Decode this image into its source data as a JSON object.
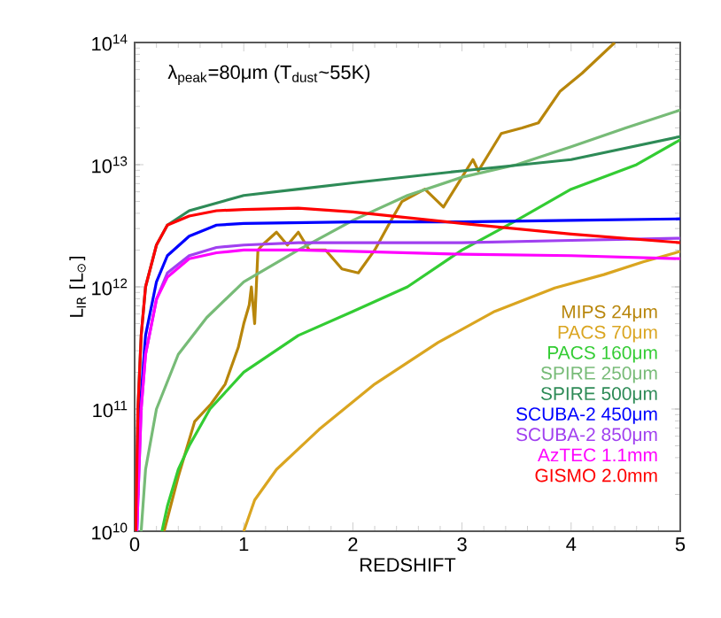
{
  "chart_data": {
    "type": "line",
    "xlabel": "REDSHIFT",
    "ylabel": "L$_{IR}$ [L$_{⊙}$]",
    "annotations": [
      "λ$_{peak}$=80μm (T$_{dust}$~55K)"
    ],
    "xlim": [
      0,
      5
    ],
    "xticks": [
      0,
      1,
      2,
      3,
      4,
      5
    ],
    "ylim": [
      10000000000.0,
      100000000000000.0
    ],
    "log": "y",
    "yticks": [
      {
        "value": 10000000000.0,
        "label": "10$^{10}$"
      },
      {
        "value": 100000000000.0,
        "label": "10$^{11}$"
      },
      {
        "value": 1000000000000.0,
        "label": "10$^{12}$"
      },
      {
        "value": 10000000000000.0,
        "label": "10$^{13}$"
      },
      {
        "value": 100000000000000.0,
        "label": "10$^{14}$"
      }
    ],
    "grid": false,
    "legend": "bottom right",
    "marker": "none",
    "line_style": "solid",
    "series": [
      {
        "name": "MIPS 24μm",
        "color": "#b8860b",
        "x": [
          0.27,
          0.4,
          0.55,
          0.7,
          0.83,
          0.95,
          1.0,
          1.05,
          1.07,
          1.1,
          1.13,
          1.17,
          1.3,
          1.4,
          1.5,
          1.6,
          1.75,
          1.9,
          2.05,
          2.2,
          2.35,
          2.45,
          2.66,
          2.83,
          3.0,
          3.1,
          3.15,
          3.36,
          3.55,
          3.7,
          3.9,
          4.1,
          4.4
        ],
        "values": [
          10000000000.0,
          28000000000.0,
          79000000000.0,
          110000000000.0,
          160000000000.0,
          320000000000.0,
          500000000000.0,
          710000000000.0,
          1000000000000.0,
          500000000000.0,
          2000000000000.0,
          2200000000000.0,
          2800000000000.0,
          2200000000000.0,
          2800000000000.0,
          2000000000000.0,
          2000000000000.0,
          1400000000000.0,
          1300000000000.0,
          2000000000000.0,
          3500000000000.0,
          5000000000000.0,
          6300000000000.0,
          4500000000000.0,
          7900000000000.0,
          11000000000000.0,
          8900000000000.0,
          18000000000000.0,
          20000000000000.0,
          22000000000000.0,
          40000000000000.0,
          56000000000000.0,
          100000000000000.0
        ]
      },
      {
        "name": "PACS 70μm",
        "color": "#daa520",
        "x": [
          1.0,
          1.1,
          1.3,
          1.69,
          2.2,
          2.78,
          3.3,
          3.85,
          4.3,
          4.66,
          5.0
        ],
        "values": [
          10000000000.0,
          18000000000.0,
          32000000000.0,
          68000000000.0,
          160000000000.0,
          350000000000.0,
          630000000000.0,
          980000000000.0,
          1260000000000.0,
          1600000000000.0,
          1950000000000.0
        ]
      },
      {
        "name": "PACS 160μm",
        "color": "#33cc33",
        "x": [
          0.25,
          0.3,
          0.4,
          0.5,
          0.69,
          1.0,
          1.5,
          2.0,
          2.5,
          3.0,
          3.5,
          4.0,
          4.6,
          5.0
        ],
        "values": [
          10000000000.0,
          16000000000.0,
          32000000000.0,
          50000000000.0,
          100000000000.0,
          200000000000.0,
          400000000000.0,
          630000000000.0,
          1000000000000.0,
          2000000000000.0,
          3500000000000.0,
          6300000000000.0,
          10000000000000.0,
          16000000000000.0
        ]
      },
      {
        "name": "SPIRE 250μm",
        "color": "#77bb77",
        "x": [
          0.06,
          0.1,
          0.2,
          0.4,
          0.66,
          1.0,
          1.5,
          2.0,
          2.5,
          3.0,
          3.5,
          4.0,
          4.5,
          5.0
        ],
        "values": [
          10000000000.0,
          32000000000.0,
          100000000000.0,
          280000000000.0,
          560000000000.0,
          1100000000000.0,
          2000000000000.0,
          3500000000000.0,
          5600000000000.0,
          7900000000000.0,
          10000000000000.0,
          14000000000000.0,
          20000000000000.0,
          28000000000000.0
        ]
      },
      {
        "name": "SPIRE 500μm",
        "color": "#2e8b57",
        "x": [
          0.01,
          0.03,
          0.06,
          0.1,
          0.2,
          0.3,
          0.5,
          1.0,
          1.5,
          2.0,
          3.0,
          4.0,
          5.0
        ],
        "values": [
          10000000000.0,
          100000000000.0,
          400000000000.0,
          1000000000000.0,
          2200000000000.0,
          3200000000000.0,
          4200000000000.0,
          5600000000000.0,
          6300000000000.0,
          7100000000000.0,
          8900000000000.0,
          11000000000000.0,
          17000000000000.0
        ]
      },
      {
        "name": "SCUBA-2 450μm",
        "color": "#0000ff",
        "x": [
          0.02,
          0.05,
          0.1,
          0.2,
          0.3,
          0.5,
          0.75,
          1.0,
          2.0,
          3.0,
          4.0,
          5.0
        ],
        "values": [
          10000000000.0,
          100000000000.0,
          400000000000.0,
          1100000000000.0,
          1800000000000.0,
          2600000000000.0,
          3200000000000.0,
          3300000000000.0,
          3400000000000.0,
          3400000000000.0,
          3500000000000.0,
          3600000000000.0
        ]
      },
      {
        "name": "SCUBA-2 850μm",
        "color": "#a040f0",
        "x": [
          0.02,
          0.06,
          0.1,
          0.2,
          0.3,
          0.5,
          0.75,
          1.0,
          1.5,
          2.0,
          3.0,
          4.0,
          5.0
        ],
        "values": [
          10000000000.0,
          100000000000.0,
          280000000000.0,
          790000000000.0,
          1300000000000.0,
          1800000000000.0,
          2100000000000.0,
          2200000000000.0,
          2300000000000.0,
          2300000000000.0,
          2300000000000.0,
          2400000000000.0,
          2500000000000.0
        ]
      },
      {
        "name": "AzTEC 1.1mm",
        "color": "#ff00ff",
        "x": [
          0.02,
          0.06,
          0.1,
          0.2,
          0.3,
          0.5,
          0.75,
          1.0,
          1.5,
          2.0,
          3.0,
          4.0,
          5.0
        ],
        "values": [
          10000000000.0,
          100000000000.0,
          280000000000.0,
          790000000000.0,
          1200000000000.0,
          1700000000000.0,
          1900000000000.0,
          2000000000000.0,
          2000000000000.0,
          1950000000000.0,
          1850000000000.0,
          1800000000000.0,
          1700000000000.0
        ]
      },
      {
        "name": "GISMO 2.0mm",
        "color": "#ff0000",
        "x": [
          0.01,
          0.03,
          0.06,
          0.1,
          0.2,
          0.3,
          0.5,
          0.75,
          1.0,
          1.5,
          2.0,
          3.0,
          4.0,
          5.0
        ],
        "values": [
          10000000000.0,
          100000000000.0,
          400000000000.0,
          1000000000000.0,
          2200000000000.0,
          3200000000000.0,
          3800000000000.0,
          4200000000000.0,
          4300000000000.0,
          4400000000000.0,
          4100000000000.0,
          3300000000000.0,
          2700000000000.0,
          2300000000000.0
        ]
      }
    ]
  }
}
